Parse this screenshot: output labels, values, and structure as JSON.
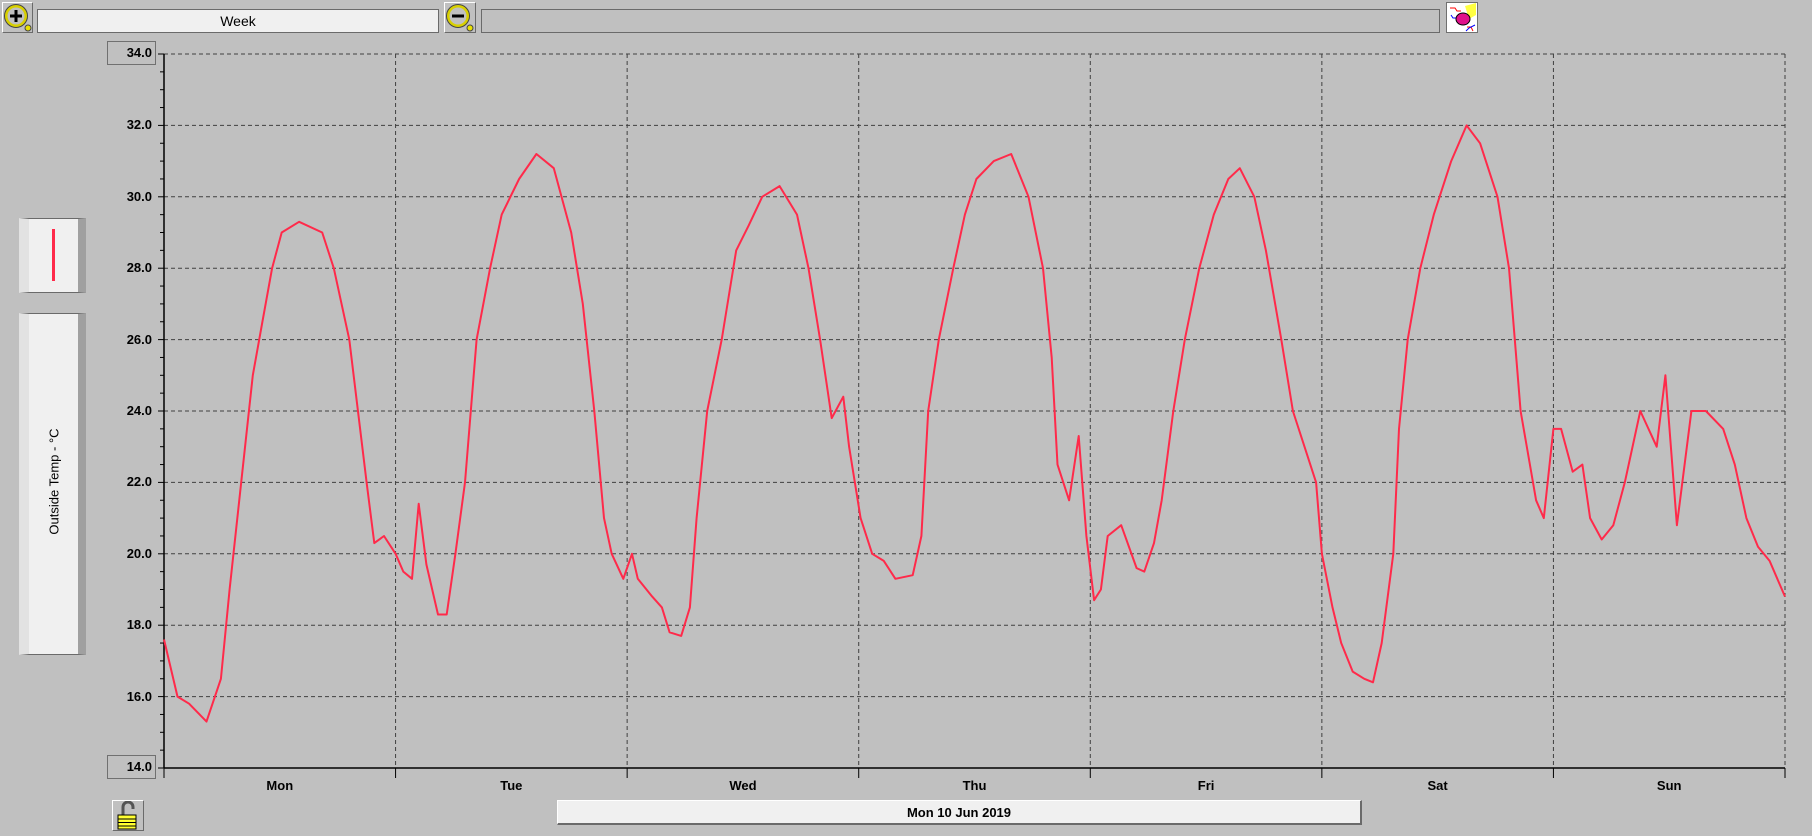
{
  "toolbar": {
    "zoom_in_icon": "magnifier-plus-icon",
    "zoom_out_icon": "magnifier-minus-icon",
    "period": "Week",
    "range_field": "",
    "clear_icon": "eraser-icon"
  },
  "legend": {
    "series_label": "Outside Temp - °C",
    "series_color": "#ff2a4a"
  },
  "footer": {
    "lock_icon": "padlock-open-icon",
    "date": "Mon 10 Jun 2019"
  },
  "chart_data": {
    "type": "line",
    "title": "",
    "ylabel": "Outside Temp - °C",
    "ylim": [
      14.0,
      34.0
    ],
    "yticks": [
      "14.0",
      "16.0",
      "18.0",
      "20.0",
      "22.0",
      "24.0",
      "26.0",
      "28.0",
      "30.0",
      "32.0",
      "34.0"
    ],
    "x_categories": [
      "Mon",
      "Tue",
      "Wed",
      "Thu",
      "Fri",
      "Sat",
      "Sun"
    ],
    "grid": true,
    "color": "#ff2a4a",
    "series": [
      {
        "day": "Mon",
        "points": [
          [
            0,
            17.6
          ],
          [
            1.4,
            16.0
          ],
          [
            2.6,
            15.8
          ],
          [
            4.4,
            15.3
          ],
          [
            5.9,
            16.5
          ],
          [
            6.8,
            19
          ],
          [
            8.0,
            22
          ],
          [
            9.2,
            25
          ],
          [
            10.2,
            26.5
          ],
          [
            11.2,
            28
          ],
          [
            12.2,
            29
          ],
          [
            14.0,
            29.3
          ],
          [
            16.4,
            29
          ],
          [
            17.6,
            28
          ],
          [
            19.2,
            26
          ],
          [
            21.0,
            22
          ],
          [
            21.8,
            20.3
          ],
          [
            22.8,
            20.5
          ]
        ]
      },
      {
        "day": "Tue",
        "points": [
          [
            0,
            20
          ],
          [
            0.8,
            19.5
          ],
          [
            1.7,
            19.3
          ],
          [
            2.4,
            21.4
          ],
          [
            3.2,
            19.7
          ],
          [
            4.4,
            18.3
          ],
          [
            5.3,
            18.3
          ],
          [
            6.2,
            20
          ],
          [
            7.2,
            22
          ],
          [
            8.4,
            26
          ],
          [
            9.8,
            28
          ],
          [
            11.0,
            29.5
          ],
          [
            12.8,
            30.5
          ],
          [
            14.6,
            31.2
          ],
          [
            16.4,
            30.8
          ],
          [
            18.2,
            29
          ],
          [
            19.4,
            27
          ],
          [
            20.6,
            24
          ],
          [
            21.6,
            21
          ],
          [
            22.4,
            20
          ],
          [
            23.6,
            19.3
          ]
        ]
      },
      {
        "day": "Wed",
        "points": [
          [
            0.5,
            20
          ],
          [
            1.1,
            19.3
          ],
          [
            2.6,
            18.8
          ],
          [
            3.6,
            18.5
          ],
          [
            4.4,
            17.8
          ],
          [
            5.6,
            17.7
          ],
          [
            6.5,
            18.5
          ],
          [
            7.2,
            21
          ],
          [
            8.3,
            24
          ],
          [
            9.8,
            26
          ],
          [
            11.3,
            28.5
          ],
          [
            12.6,
            29.2
          ],
          [
            14.0,
            30
          ],
          [
            15.8,
            30.3
          ],
          [
            17.6,
            29.5
          ],
          [
            18.8,
            28
          ],
          [
            20.0,
            26
          ],
          [
            21.2,
            23.8
          ],
          [
            22.4,
            24.4
          ],
          [
            23.0,
            23
          ]
        ]
      },
      {
        "day": "Thu",
        "points": [
          [
            0.2,
            21
          ],
          [
            1.4,
            20
          ],
          [
            2.6,
            19.8
          ],
          [
            3.8,
            19.3
          ],
          [
            5.6,
            19.4
          ],
          [
            6.5,
            20.5
          ],
          [
            7.2,
            24
          ],
          [
            8.3,
            26
          ],
          [
            9.8,
            28
          ],
          [
            11.0,
            29.5
          ],
          [
            12.2,
            30.5
          ],
          [
            14.0,
            31
          ],
          [
            15.8,
            31.2
          ],
          [
            17.6,
            30
          ],
          [
            19.1,
            28
          ],
          [
            20.0,
            25.5
          ],
          [
            20.6,
            22.5
          ],
          [
            21.8,
            21.5
          ],
          [
            22.8,
            23.3
          ],
          [
            23.6,
            20.5
          ]
        ]
      },
      {
        "day": "Fri",
        "points": [
          [
            0.4,
            18.7
          ],
          [
            1.1,
            19
          ],
          [
            1.8,
            20.5
          ],
          [
            3.2,
            20.8
          ],
          [
            4.8,
            19.6
          ],
          [
            5.6,
            19.5
          ],
          [
            6.6,
            20.3
          ],
          [
            7.4,
            21.5
          ],
          [
            8.6,
            24
          ],
          [
            9.8,
            26
          ],
          [
            11.3,
            28
          ],
          [
            12.8,
            29.5
          ],
          [
            14.3,
            30.5
          ],
          [
            15.5,
            30.8
          ],
          [
            17.0,
            30
          ],
          [
            18.2,
            28.5
          ],
          [
            19.8,
            26
          ],
          [
            21.0,
            24
          ],
          [
            22.2,
            23
          ],
          [
            23.4,
            22
          ]
        ]
      },
      {
        "day": "Sat",
        "points": [
          [
            0,
            20
          ],
          [
            1.1,
            18.5
          ],
          [
            2.0,
            17.5
          ],
          [
            3.2,
            16.7
          ],
          [
            4.4,
            16.5
          ],
          [
            5.3,
            16.4
          ],
          [
            6.2,
            17.5
          ],
          [
            7.4,
            20
          ],
          [
            8.0,
            23.5
          ],
          [
            8.9,
            26
          ],
          [
            10.2,
            28
          ],
          [
            11.6,
            29.5
          ],
          [
            13.4,
            31
          ],
          [
            15.0,
            32
          ],
          [
            16.4,
            31.5
          ],
          [
            18.2,
            30
          ],
          [
            19.4,
            28
          ],
          [
            20.6,
            24
          ],
          [
            22.2,
            21.5
          ],
          [
            23.0,
            21
          ]
        ]
      },
      {
        "day": "Sun",
        "points": [
          [
            0,
            23.5
          ],
          [
            0.8,
            23.5
          ],
          [
            2.0,
            22.3
          ],
          [
            3.0,
            22.5
          ],
          [
            3.8,
            21
          ],
          [
            5.0,
            20.4
          ],
          [
            6.2,
            20.8
          ],
          [
            7.4,
            22
          ],
          [
            9.0,
            24
          ],
          [
            10.7,
            23
          ],
          [
            11.6,
            25
          ],
          [
            12.8,
            20.8
          ],
          [
            14.3,
            24
          ],
          [
            15.8,
            24
          ],
          [
            17.6,
            23.5
          ],
          [
            18.8,
            22.5
          ],
          [
            20.0,
            21
          ],
          [
            21.2,
            20.2
          ],
          [
            22.4,
            19.8
          ],
          [
            24,
            18.8
          ]
        ]
      }
    ]
  }
}
